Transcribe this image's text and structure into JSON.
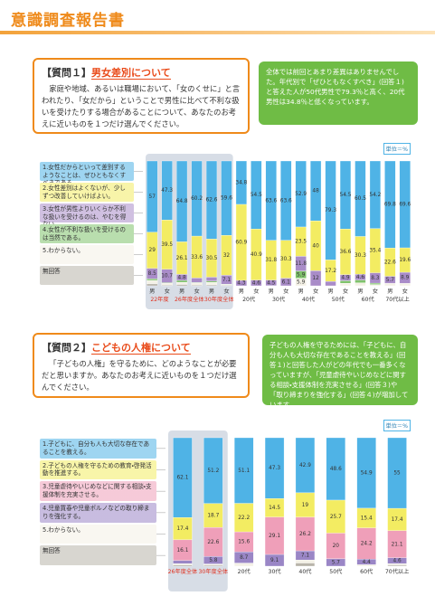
{
  "header": {
    "title": "意識調査報告書"
  },
  "sections": [
    {
      "question_label": "【質問１】",
      "question_title": "男女差別について",
      "question_text": "家庭や地域、あるいは職場において、「女のくせに」と言われたり、「女だから」ということで男性に比べて不利な扱いを受けたりする場合があることについて、あなたのお考えに近いものを１つだけ選んでください。",
      "note": "全体では前回とあまり差異はありませんでした。年代別で「ぜひともなくすべき」(回答１)と答えた人が50代男性で79.3％と高く、20代男性は34.8％と低くなっています。"
    },
    {
      "question_label": "【質問２】",
      "question_title": "こどもの人権について",
      "question_text": "「子どもの人権」を守るために、どのようなことが必要だと思いますか。あなたのお考えに近いものを１つだけ選んでください。",
      "note": "子どもの人権を守るためには、「子どもに、自分も人も大切な存在であることを教える」(回答１)と回答した人がどの年代でも一番多くなっていますが、「児童虐待やいじめなどに関する相談・支援体制を充実させる」(回答３)や「取り締まりを強化する」(回答４)が増加しています。"
    }
  ],
  "chart_data": [
    {
      "type": "bar",
      "stacked": true,
      "unit_label": "単位＝%",
      "ylim": [
        0,
        100
      ],
      "categories": [
        "男",
        "女",
        "男",
        "女",
        "男",
        "女",
        "男",
        "女",
        "男",
        "女",
        "男",
        "女",
        "男",
        "女",
        "男",
        "女",
        "男",
        "女"
      ],
      "groups": [
        "22年度",
        "26年度全体",
        "30年度全体",
        "20代",
        "30代",
        "40代",
        "50代",
        "60代",
        "70代以上"
      ],
      "series": [
        {
          "name": "1.女性だからといって差別するようなことは、ぜひともなくすべきである。",
          "color": "#4fb3e6",
          "values": [
            57.0,
            47.3,
            64.8,
            60.2,
            62.6,
            59.6,
            34.8,
            54.5,
            63.6,
            63.6,
            52.9,
            48.0,
            79.3,
            54.5,
            60.5,
            54.2,
            69.8,
            69.6
          ]
        },
        {
          "name": "2.女性差別はよくないが、少しずつ改善していけばよい。",
          "color": "#f3ec62",
          "values": [
            29.0,
            39.5,
            26.1,
            33.6,
            30.5,
            32.0,
            60.9,
            40.9,
            31.8,
            30.3,
            23.5,
            40.0,
            17.2,
            36.6,
            30.3,
            35.4,
            22.6,
            19.6
          ]
        },
        {
          "name": "3.女性が男性よりいくらか不利な扱いを受けるのは、やむを得ない。",
          "color": "#a98cc8",
          "values": [
            8.5,
            10.7,
            4.8,
            3.6,
            3.2,
            7.1,
            4.3,
            4.6,
            4.5,
            6.1,
            11.8,
            12.0,
            3.5,
            4.9,
            4.6,
            8.3,
            5.7,
            8.9
          ]
        },
        {
          "name": "4.女性が不利な扱いを受けるのは当然である。",
          "color": "#7fc26b",
          "values": [
            1.2,
            0.5,
            1.5,
            0.4,
            1.0,
            0.3,
            0,
            0,
            0,
            0,
            5.9,
            0,
            0,
            2.0,
            2.3,
            1.1,
            0,
            0
          ]
        },
        {
          "name": "5.わからない。",
          "color": "#f4f1e6",
          "values": [
            2.8,
            1.5,
            1.8,
            1.6,
            2.0,
            0.6,
            0,
            0,
            0,
            0,
            5.9,
            0,
            0,
            2.0,
            2.3,
            1.0,
            1.9,
            1.9
          ]
        },
        {
          "name": "無回答",
          "color": "#b8b4aa",
          "values": [
            1.5,
            0.5,
            1.0,
            0.6,
            0.7,
            0.4,
            0,
            0,
            0,
            0,
            0,
            0,
            0,
            0,
            0,
            0,
            0,
            0
          ]
        }
      ]
    },
    {
      "type": "bar",
      "stacked": true,
      "unit_label": "単位＝%",
      "ylim": [
        0,
        100
      ],
      "categories": [
        "26年度全体",
        "30年度全体",
        "20代",
        "30代",
        "40代",
        "50代",
        "60代",
        "70代以上"
      ],
      "series": [
        {
          "name": "1.子どもに、自分も人も大切な存在であることを教える。",
          "color": "#4fb3e6",
          "values": [
            62.1,
            51.2,
            51.1,
            47.3,
            42.9,
            48.6,
            54.9,
            55.0
          ]
        },
        {
          "name": "2.子どもの人権を守るための教育・啓発活動を推進する。",
          "color": "#f3ec62",
          "values": [
            17.4,
            18.7,
            22.2,
            14.5,
            19.0,
            25.7,
            15.4,
            17.4
          ]
        },
        {
          "name": "3.児童虐待やいじめなどに関する相談・支援体制を充実させる。",
          "color": "#ef9fb9",
          "values": [
            16.1,
            22.6,
            15.6,
            29.1,
            26.2,
            20.0,
            24.2,
            21.1
          ]
        },
        {
          "name": "4.児童買春や児童ポルノなどの取り締まりを強化する。",
          "color": "#9a86c6",
          "values": [
            2.5,
            5.8,
            8.7,
            9.1,
            7.1,
            5.7,
            4.4,
            4.6
          ]
        },
        {
          "name": "5.わからない。",
          "color": "#f4f1e6",
          "values": [
            1.0,
            1.0,
            2.4,
            0,
            2.4,
            0,
            1.1,
            0.9
          ]
        },
        {
          "name": "無回答",
          "color": "#b8b4aa",
          "values": [
            0.9,
            0.7,
            0,
            0,
            2.4,
            0,
            0,
            0.9
          ]
        }
      ]
    }
  ]
}
